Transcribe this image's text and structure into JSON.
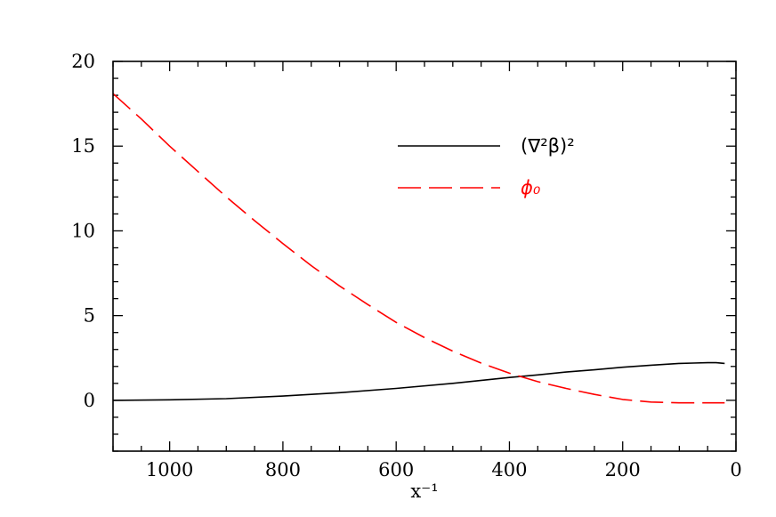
{
  "chart_data": {
    "type": "line",
    "title": "",
    "xlabel": "x⁻¹",
    "ylabel": "",
    "xlim": [
      1100,
      0
    ],
    "ylim": [
      -3,
      20
    ],
    "x_reversed": true,
    "xticks": [
      1000,
      800,
      600,
      400,
      200,
      0
    ],
    "yticks": [
      0,
      5,
      10,
      15,
      20
    ],
    "xticks_minor_step": 50,
    "yticks_minor_step": 1,
    "grid": false,
    "legend": "top-right",
    "series": [
      {
        "name": "(∇²β)²",
        "color": "#000000",
        "style": "solid",
        "x": [
          1100,
          1000,
          900,
          800,
          700,
          600,
          500,
          400,
          350,
          300,
          250,
          200,
          150,
          100,
          75,
          50,
          35,
          20
        ],
        "y": [
          0.0,
          0.03,
          0.1,
          0.25,
          0.45,
          0.7,
          1.0,
          1.35,
          1.5,
          1.67,
          1.8,
          1.95,
          2.07,
          2.18,
          2.2,
          2.22,
          2.22,
          2.18
        ]
      },
      {
        "name": "ϕ₀",
        "color": "#ff0000",
        "style": "dashed",
        "x": [
          1100,
          1050,
          1000,
          950,
          900,
          850,
          800,
          750,
          700,
          650,
          600,
          550,
          500,
          450,
          400,
          350,
          300,
          250,
          200,
          150,
          100,
          50,
          20
        ],
        "y": [
          18.1,
          16.6,
          15.0,
          13.5,
          12.0,
          10.6,
          9.25,
          7.95,
          6.75,
          5.65,
          4.6,
          3.7,
          2.9,
          2.2,
          1.6,
          1.1,
          0.7,
          0.35,
          0.05,
          -0.1,
          -0.15,
          -0.15,
          -0.15
        ]
      }
    ]
  }
}
